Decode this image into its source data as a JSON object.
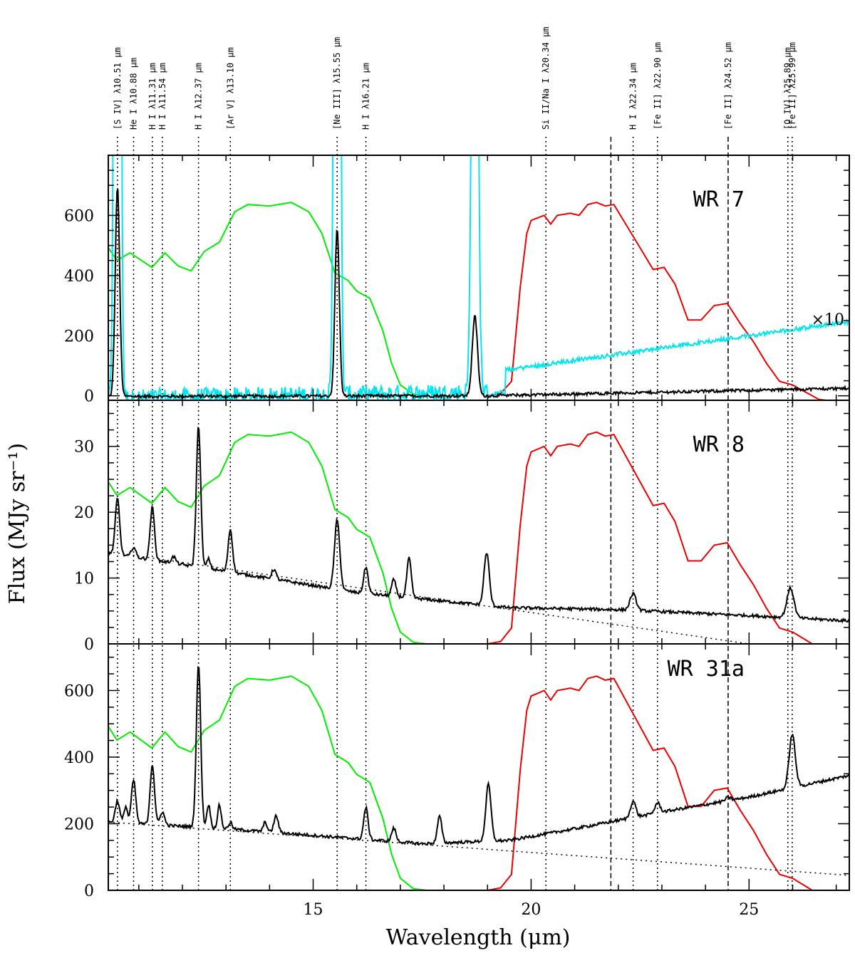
{
  "chart_data": {
    "type": "line",
    "xlabel": "Wavelength (μm)",
    "ylabel": "Flux (MJy sr⁻¹)",
    "xlim": [
      10.3,
      27.3
    ],
    "x_ticks": [
      15,
      20,
      25
    ],
    "line_ids": [
      {
        "label": "[S IV] λ10.51 μm",
        "x": 10.51,
        "style": "dotted"
      },
      {
        "label": "He I λ10.88 μm",
        "x": 10.88,
        "style": "dotted"
      },
      {
        "label": "H I λ11.31 μm",
        "x": 11.31,
        "style": "dotted"
      },
      {
        "label": "H I λ11.54 μm",
        "x": 11.54,
        "style": "dotted"
      },
      {
        "label": "H I λ12.37 μm",
        "x": 12.37,
        "style": "dotted"
      },
      {
        "label": "[Ar V] λ13.10 μm",
        "x": 13.1,
        "style": "dotted"
      },
      {
        "label": "[Ne III] λ15.55 μm",
        "x": 15.55,
        "style": "dotted"
      },
      {
        "label": "H I λ16.21 μm",
        "x": 16.21,
        "style": "dotted"
      },
      {
        "label": "Si II/Na I λ20.34 μm",
        "x": 20.34,
        "style": "dotted"
      },
      {
        "label": "",
        "x": 21.83,
        "style": "dashed"
      },
      {
        "label": "H I λ22.34 μm",
        "x": 22.34,
        "style": "dotted"
      },
      {
        "label": "[Fe II] λ22.90 μm",
        "x": 22.9,
        "style": "dotted"
      },
      {
        "label": "[Fe II] λ24.52 μm",
        "x": 24.52,
        "style": "dashed"
      },
      {
        "label": "[O IV] λ25.89 μm",
        "x": 25.89,
        "style": "dotted"
      },
      {
        "label": "[Fe II] λ25.99 μm",
        "x": 25.99,
        "style": "dotted"
      }
    ],
    "panels": [
      {
        "name": "WR 7",
        "ylim": [
          -15,
          800
        ],
        "y_ticks": [
          0,
          200,
          400,
          600
        ],
        "scale": 24,
        "annotation": "×10",
        "cyan_mult": 10,
        "series": [
          {
            "role": "spectrum",
            "color": "#000000",
            "baseline": [
              [
                10.3,
                -2
              ],
              [
                19,
                0
              ],
              [
                27.3,
                25
              ]
            ],
            "peaks": [
              [
                10.51,
                700,
                0.05
              ],
              [
                15.55,
                560,
                0.05
              ],
              [
                18.71,
                265,
                0.06
              ]
            ]
          },
          {
            "role": "SL filter",
            "color": "#00ee00"
          },
          {
            "role": "LL filter",
            "color": "#ee0000"
          },
          {
            "role": "spectrum ×10",
            "color": "#00e5ee"
          }
        ]
      },
      {
        "name": "WR 8",
        "ylim": [
          0,
          37
        ],
        "y_ticks": [
          0,
          10,
          20,
          30
        ],
        "scale": 1.2,
        "series": [
          {
            "role": "spectrum",
            "color": "#000000",
            "baseline": [
              [
                10.3,
                13.8
              ],
              [
                13,
                11
              ],
              [
                16,
                7.8
              ],
              [
                19.5,
                5.5
              ],
              [
                22,
                5.2
              ],
              [
                25,
                4.3
              ],
              [
                27.3,
                3.5
              ]
            ],
            "peaks": [
              [
                10.51,
                8.5,
                0.05
              ],
              [
                10.88,
                1.5,
                0.05
              ],
              [
                11.31,
                8.0,
                0.05
              ],
              [
                11.8,
                1.0,
                0.05
              ],
              [
                12.37,
                21.5,
                0.05
              ],
              [
                12.6,
                1.5,
                0.04
              ],
              [
                13.1,
                6.5,
                0.05
              ],
              [
                14.1,
                1.5,
                0.05
              ],
              [
                15.55,
                10.5,
                0.06
              ],
              [
                16.21,
                4.0,
                0.05
              ],
              [
                16.85,
                2.5,
                0.05
              ],
              [
                17.2,
                6.0,
                0.05
              ],
              [
                18.98,
                8.0,
                0.06
              ],
              [
                22.34,
                2.5,
                0.07
              ],
              [
                25.95,
                4.5,
                0.08
              ]
            ]
          },
          {
            "role": "SL filter",
            "color": "#00ee00"
          },
          {
            "role": "LL filter",
            "color": "#ee0000"
          },
          {
            "role": "continuum",
            "color": "#000000",
            "style": "dotted",
            "line": [
              [
                10.3,
                14.0
              ],
              [
                25.0,
                0
              ]
            ]
          }
        ]
      },
      {
        "name": "WR 31a",
        "ylim": [
          0,
          740
        ],
        "y_ticks": [
          0,
          200,
          400,
          600
        ],
        "scale": 24,
        "series": [
          {
            "role": "spectrum",
            "color": "#000000",
            "baseline": [
              [
                10.3,
                205
              ],
              [
                13,
                185
              ],
              [
                15.5,
                160
              ],
              [
                17.5,
                140
              ],
              [
                19.5,
                150
              ],
              [
                21,
                185
              ],
              [
                23,
                235
              ],
              [
                25,
                280
              ],
              [
                27.3,
                345
              ]
            ],
            "peaks": [
              [
                10.51,
                65,
                0.05
              ],
              [
                10.7,
                50,
                0.04
              ],
              [
                10.88,
                130,
                0.05
              ],
              [
                11.31,
                180,
                0.05
              ],
              [
                11.54,
                40,
                0.05
              ],
              [
                12.37,
                490,
                0.05
              ],
              [
                12.6,
                70,
                0.04
              ],
              [
                12.85,
                70,
                0.04
              ],
              [
                13.1,
                20,
                0.04
              ],
              [
                13.9,
                30,
                0.04
              ],
              [
                14.15,
                50,
                0.05
              ],
              [
                16.21,
                95,
                0.05
              ],
              [
                16.85,
                40,
                0.05
              ],
              [
                17.9,
                80,
                0.05
              ],
              [
                19.02,
                170,
                0.06
              ],
              [
                22.34,
                50,
                0.06
              ],
              [
                22.9,
                30,
                0.06
              ],
              [
                24.52,
                10,
                0.06
              ],
              [
                25.99,
                160,
                0.07
              ]
            ]
          },
          {
            "role": "SL filter",
            "color": "#00ee00"
          },
          {
            "role": "LL filter",
            "color": "#ee0000"
          },
          {
            "role": "continuum",
            "color": "#000000",
            "style": "dotted",
            "line": [
              [
                10.3,
                205
              ],
              [
                27.3,
                45
              ]
            ]
          }
        ]
      }
    ],
    "filters": {
      "SL": [
        [
          10.3,
          20.5
        ],
        [
          10.5,
          18.8
        ],
        [
          10.8,
          19.8
        ],
        [
          11.0,
          19.0
        ],
        [
          11.3,
          17.8
        ],
        [
          11.6,
          19.8
        ],
        [
          11.9,
          18.0
        ],
        [
          12.2,
          17.3
        ],
        [
          12.5,
          20.0
        ],
        [
          12.85,
          21.3
        ],
        [
          13.2,
          25.5
        ],
        [
          13.5,
          26.5
        ],
        [
          14.0,
          26.3
        ],
        [
          14.5,
          26.8
        ],
        [
          14.9,
          25.5
        ],
        [
          15.2,
          22.5
        ],
        [
          15.5,
          17.0
        ],
        [
          15.8,
          16.0
        ],
        [
          16.0,
          14.5
        ],
        [
          16.3,
          13.5
        ],
        [
          16.6,
          9.0
        ],
        [
          16.8,
          4.5
        ],
        [
          17.0,
          1.5
        ],
        [
          17.3,
          0.2
        ],
        [
          17.6,
          0
        ]
      ],
      "LL": [
        [
          19.0,
          0
        ],
        [
          19.3,
          0.3
        ],
        [
          19.55,
          2.0
        ],
        [
          19.75,
          15.0
        ],
        [
          19.9,
          22.5
        ],
        [
          20.0,
          24.3
        ],
        [
          20.3,
          25.0
        ],
        [
          20.45,
          23.8
        ],
        [
          20.6,
          25.0
        ],
        [
          20.9,
          25.3
        ],
        [
          21.1,
          25.0
        ],
        [
          21.3,
          26.5
        ],
        [
          21.5,
          26.8
        ],
        [
          21.7,
          26.3
        ],
        [
          21.9,
          26.5
        ],
        [
          22.2,
          23.5
        ],
        [
          22.5,
          20.5
        ],
        [
          22.8,
          17.5
        ],
        [
          23.05,
          17.8
        ],
        [
          23.3,
          15.5
        ],
        [
          23.6,
          10.5
        ],
        [
          23.9,
          10.5
        ],
        [
          24.2,
          12.5
        ],
        [
          24.5,
          12.8
        ],
        [
          24.8,
          10.0
        ],
        [
          25.1,
          7.5
        ],
        [
          25.4,
          4.5
        ],
        [
          25.7,
          2.0
        ],
        [
          26.0,
          1.5
        ],
        [
          26.3,
          0.5
        ],
        [
          26.6,
          -0.5
        ],
        [
          27.0,
          -0.8
        ],
        [
          27.3,
          -1.0
        ]
      ]
    }
  }
}
